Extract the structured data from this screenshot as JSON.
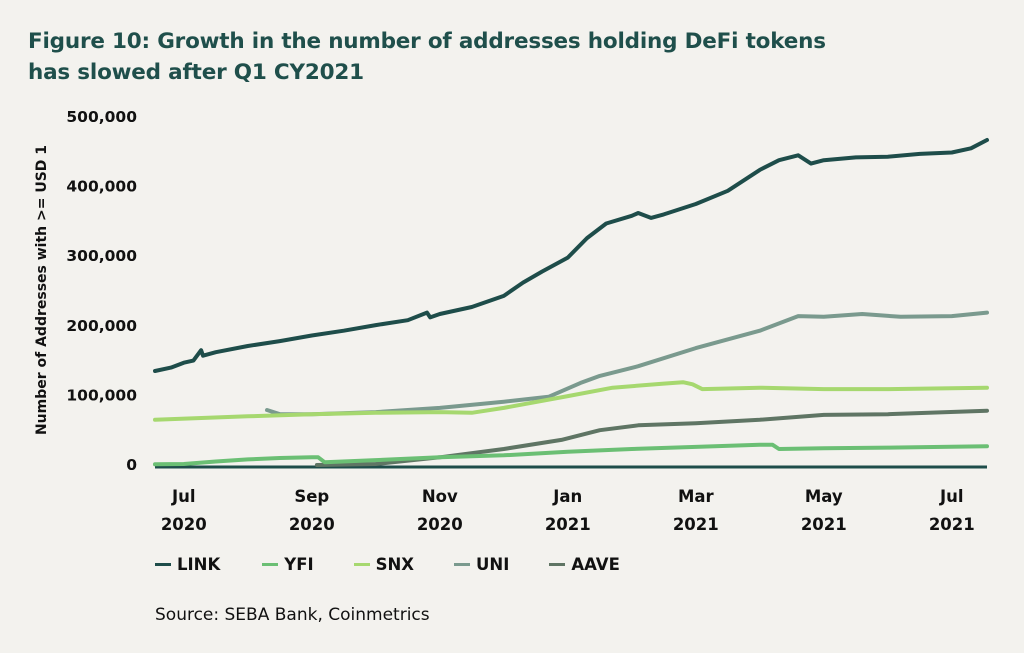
{
  "chart_data": {
    "type": "line",
    "title": "Figure 10: Growth in the number of addresses holding DeFi tokens has slowed after Q1 CY2021",
    "title_lines": [
      "Figure 10: Growth in the number of addresses holding DeFi tokens",
      "has slowed after Q1 CY2021"
    ],
    "xlabel": "",
    "ylabel": "Number of Addresses with >= USD 1",
    "x_unit": "months since Jul 2020",
    "xlim": [
      -0.45,
      12.55
    ],
    "ylim": [
      0,
      500000
    ],
    "yticks": [
      0,
      100000,
      200000,
      300000,
      400000,
      500000
    ],
    "ytick_labels": [
      "0",
      "100,000",
      "200,000",
      "300,000",
      "400,000",
      "500,000"
    ],
    "xticks": [
      0,
      2,
      4,
      6,
      8,
      10,
      12
    ],
    "xtick_labels": [
      [
        "Jul",
        "2020"
      ],
      [
        "Sep",
        "2020"
      ],
      [
        "Nov",
        "2020"
      ],
      [
        "Jan",
        "2021"
      ],
      [
        "Mar",
        "2021"
      ],
      [
        "May",
        "2021"
      ],
      [
        "Jul",
        "2021"
      ]
    ],
    "grid": false,
    "legend_position": "bottom",
    "series": [
      {
        "name": "LINK",
        "color": "#1e4d4a",
        "x": [
          -0.45,
          -0.2,
          0.0,
          0.15,
          0.27,
          0.3,
          0.5,
          1.0,
          1.5,
          2.0,
          2.5,
          3.0,
          3.5,
          3.8,
          3.85,
          4.0,
          4.5,
          5.0,
          5.3,
          5.6,
          6.0,
          6.3,
          6.6,
          7.0,
          7.1,
          7.3,
          7.5,
          8.0,
          8.5,
          9.0,
          9.3,
          9.6,
          9.8,
          10.0,
          10.5,
          11.0,
          11.5,
          12.0,
          12.3,
          12.55
        ],
        "y": [
          135000,
          140000,
          147000,
          150000,
          165000,
          157000,
          162000,
          171000,
          178000,
          186000,
          193000,
          201000,
          208000,
          219000,
          212000,
          217000,
          227000,
          243000,
          262000,
          278000,
          298000,
          326000,
          347000,
          358000,
          362000,
          355000,
          360000,
          375000,
          394000,
          424000,
          438000,
          445000,
          433000,
          438000,
          442000,
          443000,
          447000,
          449000,
          455000,
          467000
        ]
      },
      {
        "name": "YFI",
        "color": "#6bbf74",
        "x": [
          -0.45,
          0.0,
          0.5,
          1.0,
          1.5,
          2.0,
          2.1,
          2.2,
          3.0,
          4.0,
          5.0,
          6.0,
          7.0,
          8.0,
          9.0,
          9.2,
          9.3,
          10.0,
          11.0,
          12.55
        ],
        "y": [
          1000,
          1500,
          5000,
          8000,
          10000,
          11000,
          11000,
          4000,
          7000,
          11000,
          14000,
          19000,
          23000,
          26000,
          29000,
          29000,
          23000,
          24000,
          25000,
          27000
        ]
      },
      {
        "name": "SNX",
        "color": "#a6d86f",
        "x": [
          -0.45,
          1.0,
          2.0,
          3.0,
          4.0,
          4.5,
          5.0,
          6.0,
          6.7,
          7.5,
          7.8,
          7.95,
          8.1,
          9.0,
          10.0,
          11.0,
          12.55
        ],
        "y": [
          65000,
          70000,
          73000,
          75000,
          76000,
          75000,
          82000,
          99000,
          111000,
          117000,
          119000,
          116000,
          109000,
          111000,
          109000,
          109000,
          111000
        ]
      },
      {
        "name": "UNI",
        "color": "#7a9a8e",
        "x": [
          1.3,
          1.5,
          2.0,
          3.0,
          4.0,
          5.0,
          5.7,
          6.2,
          6.5,
          7.1,
          8.0,
          9.0,
          9.6,
          10.0,
          10.6,
          11.2,
          12.0,
          12.55
        ],
        "y": [
          79000,
          73000,
          73000,
          76000,
          82000,
          91000,
          98000,
          118000,
          128000,
          142000,
          168000,
          193000,
          214000,
          213000,
          217000,
          213000,
          214000,
          219000
        ]
      },
      {
        "name": "AAVE",
        "color": "#5f7564",
        "x": [
          2.08,
          3.0,
          4.0,
          5.0,
          5.9,
          6.5,
          7.1,
          8.0,
          9.0,
          10.0,
          11.0,
          12.55
        ],
        "y": [
          0,
          1500,
          11000,
          23000,
          36000,
          50000,
          57000,
          60000,
          65000,
          72000,
          73000,
          78000
        ]
      }
    ],
    "source": "Source: SEBA Bank, Coinmetrics"
  }
}
